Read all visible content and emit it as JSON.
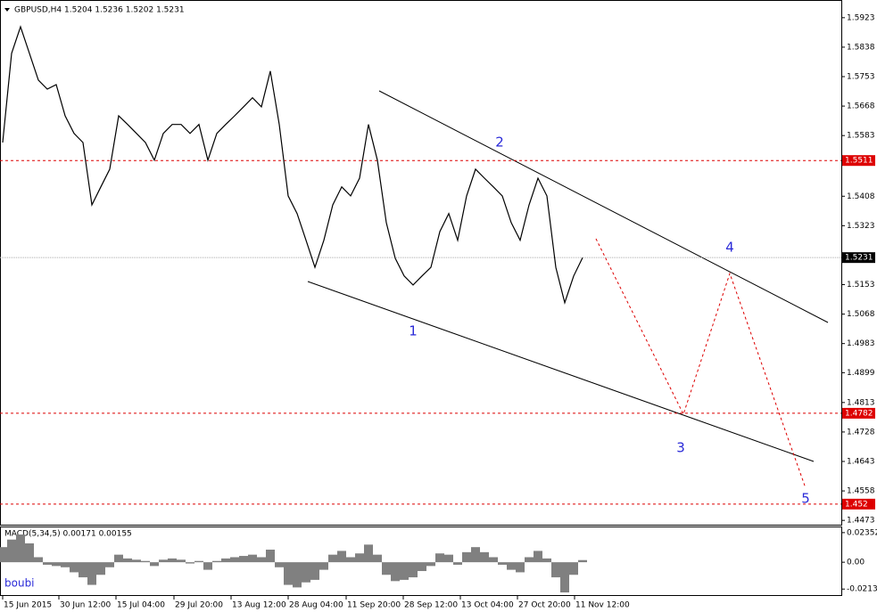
{
  "chart_data": [
    {
      "type": "line",
      "title": "GBPUSD,H4  1.5204 1.5236 1.5202 1.5231",
      "color": "#000000",
      "values": [
        1.5563,
        1.582,
        1.5897,
        1.582,
        1.5743,
        1.5717,
        1.573,
        1.564,
        1.5589,
        1.5563,
        1.5383,
        1.5435,
        1.5486,
        1.564,
        1.5615,
        1.5589,
        1.5563,
        1.5512,
        1.5589,
        1.5615,
        1.5615,
        1.5589,
        1.5615,
        1.5512,
        1.5589,
        1.5615,
        1.564,
        1.5666,
        1.5692,
        1.5666,
        1.5769,
        1.5615,
        1.5409,
        1.5358,
        1.5281,
        1.5203,
        1.5281,
        1.5383,
        1.5435,
        1.5409,
        1.546,
        1.5615,
        1.5512,
        1.5332,
        1.5229,
        1.5178,
        1.5152,
        1.5178,
        1.5203,
        1.5306,
        1.5358,
        1.5281,
        1.5409,
        1.5486,
        1.546,
        1.5435,
        1.5409,
        1.5332,
        1.5281,
        1.5383,
        1.546,
        1.5409,
        1.5203,
        1.5101,
        1.5178,
        1.5231
      ],
      "xlim": [
        -0.3,
        94
      ],
      "xticks": [
        {
          "value": 0,
          "label": "15 Jun 2015"
        },
        {
          "value": 6.3,
          "label": "30 Jun 12:00"
        },
        {
          "value": 12.7,
          "label": "15 Jul 04:00"
        },
        {
          "value": 19.2,
          "label": "29 Jul 20:00"
        },
        {
          "value": 25.6,
          "label": "13 Aug 12:00"
        },
        {
          "value": 32,
          "label": "28 Aug 04:00"
        },
        {
          "value": 38.5,
          "label": "11 Sep 20:00"
        },
        {
          "value": 44.9,
          "label": "28 Sep 12:00"
        },
        {
          "value": 51.3,
          "label": "13 Oct 04:00"
        },
        {
          "value": 57.7,
          "label": "27 Oct 20:00"
        },
        {
          "value": 64.1,
          "label": "11 Nov 12:00"
        }
      ],
      "ylim": [
        1.4458,
        1.5974
      ],
      "yticks": [
        1.5923,
        1.5838,
        1.5753,
        1.5668,
        1.5583,
        1.5408,
        1.5323,
        1.5153,
        1.5068,
        1.4983,
        1.4899,
        1.4813,
        1.4728,
        1.4643,
        1.4558,
        1.4473
      ],
      "levels": [
        1.5511,
        1.4782,
        1.452
      ],
      "level_color": "#dd0000",
      "current": 1.5231,
      "annotations": [
        "1",
        "2",
        "3",
        "4",
        "5"
      ]
    },
    {
      "type": "bar",
      "title": "MACD(5,34,5) 0.00171 0.00155",
      "color": "#808080",
      "values": [
        0.012,
        0.018,
        0.022,
        0.015,
        0.004,
        -0.002,
        -0.003,
        -0.004,
        -0.008,
        -0.012,
        -0.018,
        -0.01,
        -0.004,
        0.006,
        0.003,
        0.002,
        0.001,
        -0.003,
        0.002,
        0.003,
        0.002,
        -0.001,
        0.001,
        -0.006,
        0.001,
        0.003,
        0.004,
        0.005,
        0.006,
        0.004,
        0.01,
        -0.004,
        -0.018,
        -0.02,
        -0.016,
        -0.014,
        -0.006,
        0.006,
        0.009,
        0.004,
        0.007,
        0.014,
        0.006,
        -0.01,
        -0.015,
        -0.014,
        -0.012,
        -0.007,
        -0.003,
        0.007,
        0.006,
        -0.002,
        0.008,
        0.012,
        0.008,
        0.004,
        -0.002,
        -0.006,
        -0.008,
        0.004,
        0.009,
        0.003,
        -0.012,
        -0.024,
        -0.01,
        0.0017
      ],
      "ylim": [
        -0.0268,
        0.0284
      ],
      "yticks": [
        0.02352,
        {
          "value": 0,
          "label": "0.00"
        },
        -0.02131
      ]
    }
  ],
  "watermark": "boubi"
}
